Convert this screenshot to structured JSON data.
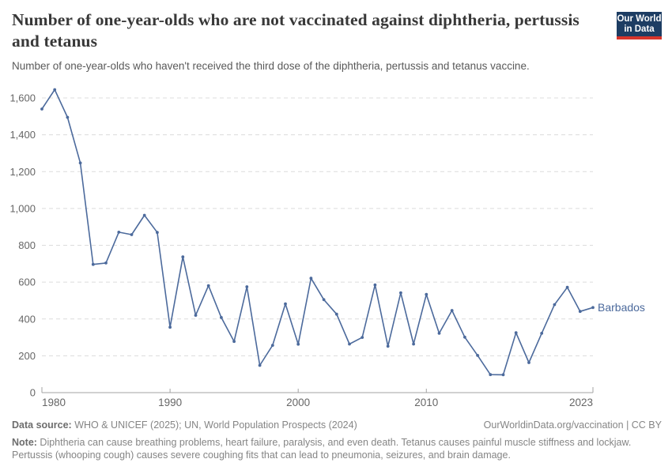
{
  "header": {
    "title": "Number of one-year-olds who are not vaccinated against diphtheria, pertussis and tetanus",
    "subtitle": "Number of one-year-olds who haven't received the third dose of the diphtheria, pertussis and tetanus vaccine.",
    "logo": {
      "line1": "Our World",
      "line2": "in Data",
      "bg_color": "#1d3d63",
      "accent_color": "#d7352b"
    }
  },
  "chart_data": {
    "type": "line",
    "title": "Number of one-year-olds who are not vaccinated against diphtheria, pertussis and tetanus",
    "xlabel": "",
    "ylabel": "",
    "xlim": [
      1980,
      2023
    ],
    "ylim": [
      0,
      1600
    ],
    "grid": "horizontal-dashed",
    "legend_position": "end-of-line-label",
    "entity_label": "Barbados",
    "xticks": [
      1980,
      1990,
      2000,
      2010,
      2023
    ],
    "yticks": [
      0,
      200,
      400,
      600,
      800,
      1000,
      1200,
      1400,
      1600
    ],
    "ytick_labels": [
      "0",
      "200",
      "400",
      "600",
      "800",
      "1,000",
      "1,200",
      "1,400",
      "1,600"
    ],
    "series": [
      {
        "name": "Barbados",
        "color": "#4c6a9c",
        "x": [
          1980,
          1981,
          1982,
          1983,
          1984,
          1985,
          1986,
          1987,
          1988,
          1989,
          1990,
          1991,
          1992,
          1993,
          1994,
          1995,
          1996,
          1997,
          1998,
          1999,
          2000,
          2001,
          2002,
          2003,
          2004,
          2005,
          2006,
          2007,
          2008,
          2009,
          2010,
          2011,
          2012,
          2013,
          2014,
          2015,
          2016,
          2017,
          2018,
          2019,
          2020,
          2021,
          2022,
          2023
        ],
        "values": [
          1540,
          1645,
          1495,
          1247,
          696,
          704,
          871,
          858,
          963,
          870,
          355,
          737,
          420,
          581,
          408,
          278,
          575,
          148,
          257,
          482,
          263,
          621,
          505,
          426,
          264,
          300,
          585,
          252,
          542,
          264,
          533,
          322,
          446,
          301,
          202,
          98,
          97,
          325,
          163,
          322,
          478,
          572,
          441,
          462
        ]
      }
    ],
    "colors": {
      "line": "#4c6a9c",
      "gridline": "#dcdcdc",
      "axis": "#a3a3a3",
      "tick_text": "#666666"
    }
  },
  "footer": {
    "source_label": "Data source:",
    "source_text": " WHO & UNICEF (2025); UN, World Population Prospects (2024)",
    "link_text": "OurWorldinData.org/vaccination | CC BY",
    "note_label": "Note:",
    "note_text": " Diphtheria can cause breathing problems, heart failure, paralysis, and even death. Tetanus causes painful muscle stiffness and lockjaw. Pertussis (whooping cough) causes severe coughing fits that can lead to pneumonia, seizures, and brain damage."
  }
}
